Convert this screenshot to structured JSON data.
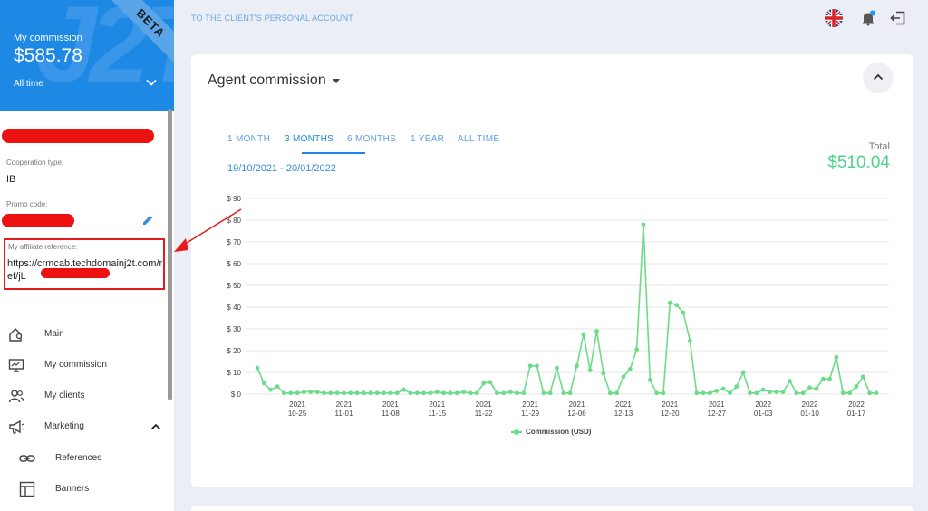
{
  "sidebar": {
    "card": {
      "label": "My commission",
      "amount": "$585.78",
      "period": "All time",
      "badge": "BETA",
      "watermark": "J2T"
    },
    "cooperation_type_label": "Cooperation type:",
    "cooperation_type_value": "IB",
    "promo_code_label": "Promo code:",
    "affiliate_label": "My affiliate reference:",
    "affiliate_url": "https://crmcab.techdomainj2t.com/ref/jL",
    "nav": [
      {
        "label": "Main",
        "icon": "home-pin-icon"
      },
      {
        "label": "My commission",
        "icon": "monitor-chart-icon"
      },
      {
        "label": "My clients",
        "icon": "users-icon"
      },
      {
        "label": "Marketing",
        "icon": "megaphone-icon"
      },
      {
        "label": "References",
        "icon": "link-icon"
      },
      {
        "label": "Banners",
        "icon": "layout-icon"
      }
    ]
  },
  "header": {
    "link": "TO THE CLIENT'S PERSONAL ACCOUNT"
  },
  "main": {
    "title": "Agent commission",
    "tabs": [
      {
        "label": "1 MONTH",
        "active": false
      },
      {
        "label": "3 MONTHS",
        "active": true
      },
      {
        "label": "6 MONTHS",
        "active": false
      },
      {
        "label": "1 YEAR",
        "active": false
      },
      {
        "label": "ALL TIME",
        "active": false
      }
    ],
    "date_range": "19/10/2021 - 20/01/2022",
    "total_label": "Total",
    "total_value": "$510.04"
  },
  "colors": {
    "accent": "#1e88e5",
    "line": "#6ddc8a",
    "total": "#4fd18b",
    "annotation": "#e31b1b"
  },
  "chart_data": {
    "type": "line",
    "x_ticks": [
      {
        "year": "2021",
        "date": "10-25"
      },
      {
        "year": "2021",
        "date": "11-01"
      },
      {
        "year": "2021",
        "date": "11-08"
      },
      {
        "year": "2021",
        "date": "11-15"
      },
      {
        "year": "2021",
        "date": "11-22"
      },
      {
        "year": "2021",
        "date": "11-29"
      },
      {
        "year": "2021",
        "date": "12-06"
      },
      {
        "year": "2021",
        "date": "12-13"
      },
      {
        "year": "2021",
        "date": "12-20"
      },
      {
        "year": "2021",
        "date": "12-27"
      },
      {
        "year": "2022",
        "date": "01-03"
      },
      {
        "year": "2022",
        "date": "01-10"
      },
      {
        "year": "2022",
        "date": "01-17"
      }
    ],
    "y_ticks": [
      "$ 0",
      "$ 10",
      "$ 20",
      "$ 30",
      "$ 40",
      "$ 50",
      "$ 60",
      "$ 70",
      "$ 80",
      "$ 90"
    ],
    "ylim": [
      0,
      90
    ],
    "series": [
      {
        "name": "Commission (USD)",
        "x": [
          "2021-10-19",
          "2021-10-20",
          "2021-10-21",
          "2021-10-22",
          "2021-10-23",
          "2021-10-24",
          "2021-10-25",
          "2021-10-26",
          "2021-10-27",
          "2021-10-28",
          "2021-10-29",
          "2021-10-30",
          "2021-10-31",
          "2021-11-01",
          "2021-11-02",
          "2021-11-03",
          "2021-11-04",
          "2021-11-05",
          "2021-11-06",
          "2021-11-07",
          "2021-11-08",
          "2021-11-09",
          "2021-11-10",
          "2021-11-11",
          "2021-11-12",
          "2021-11-13",
          "2021-11-14",
          "2021-11-15",
          "2021-11-16",
          "2021-11-17",
          "2021-11-18",
          "2021-11-19",
          "2021-11-20",
          "2021-11-21",
          "2021-11-22",
          "2021-11-23",
          "2021-11-24",
          "2021-11-25",
          "2021-11-26",
          "2021-11-27",
          "2021-11-28",
          "2021-11-29",
          "2021-11-30",
          "2021-12-01",
          "2021-12-02",
          "2021-12-03",
          "2021-12-04",
          "2021-12-05",
          "2021-12-06",
          "2021-12-07",
          "2021-12-08",
          "2021-12-09",
          "2021-12-10",
          "2021-12-11",
          "2021-12-12",
          "2021-12-13",
          "2021-12-14",
          "2021-12-15",
          "2021-12-16",
          "2021-12-17",
          "2021-12-18",
          "2021-12-19",
          "2021-12-20",
          "2021-12-21",
          "2021-12-22",
          "2021-12-23",
          "2021-12-24",
          "2021-12-25",
          "2021-12-26",
          "2021-12-27",
          "2021-12-28",
          "2021-12-29",
          "2021-12-30",
          "2021-12-31",
          "2022-01-01",
          "2022-01-02",
          "2022-01-03",
          "2022-01-04",
          "2022-01-05",
          "2022-01-06",
          "2022-01-07",
          "2022-01-08",
          "2022-01-09",
          "2022-01-10",
          "2022-01-11",
          "2022-01-12",
          "2022-01-13",
          "2022-01-14",
          "2022-01-15",
          "2022-01-16",
          "2022-01-17",
          "2022-01-18",
          "2022-01-19",
          "2022-01-20"
        ],
        "values": [
          12,
          5,
          2,
          3.5,
          0.5,
          0.5,
          0.5,
          1,
          1,
          1,
          0.5,
          0.5,
          0.5,
          0.5,
          0.5,
          0.5,
          0.5,
          0.5,
          0.5,
          0.5,
          0.5,
          0.5,
          2,
          0.5,
          0.5,
          0.5,
          0.5,
          1,
          0.5,
          0.5,
          0.5,
          1,
          0.5,
          0.5,
          5,
          5.5,
          0.5,
          0.5,
          1,
          0.5,
          0.5,
          13,
          13,
          0.5,
          0.5,
          12,
          0.5,
          0.5,
          13,
          27.5,
          11,
          29,
          9.5,
          0.5,
          0.5,
          8,
          11.5,
          20.5,
          78,
          6.5,
          0.5,
          0.5,
          42,
          41,
          37.5,
          24.5,
          0.5,
          0.5,
          0.5,
          1.5,
          2.5,
          0.5,
          3.5,
          10,
          0.5,
          0.5,
          2,
          1,
          1,
          1,
          6,
          0.5,
          0.5,
          3,
          2.5,
          7,
          7,
          17,
          0.5,
          0.5,
          3.5,
          8,
          0.5,
          0.5
        ]
      }
    ]
  }
}
